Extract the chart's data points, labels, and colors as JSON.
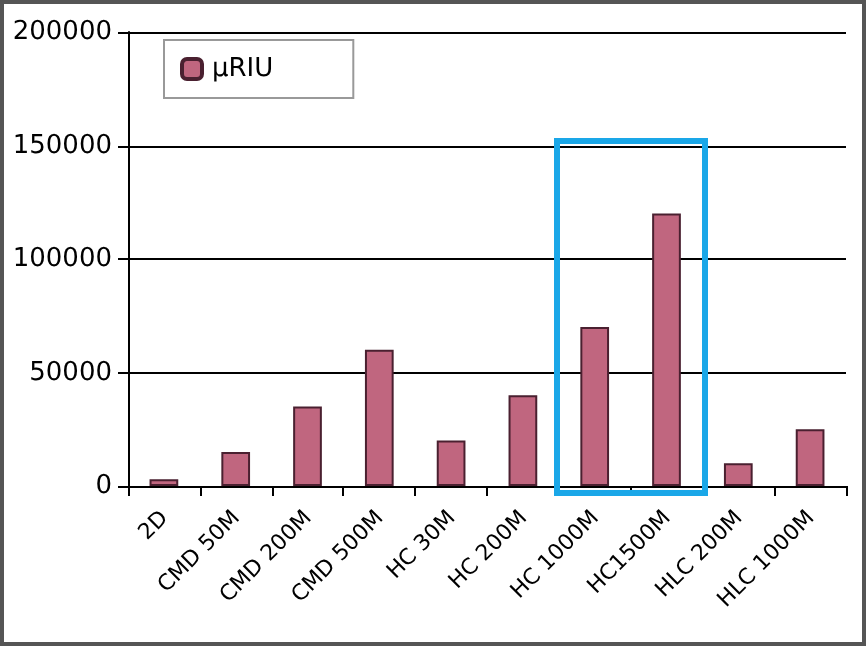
{
  "chart_data": {
    "type": "bar",
    "categories": [
      "2D",
      "CMD 50M",
      "CMD 200M",
      "CMD 500M",
      "HC 30M",
      "HC 200M",
      "HC 1000M",
      "HC1500M",
      "HLC 200M",
      "HLC 1000M"
    ],
    "series": [
      {
        "name": "µRIU",
        "color": "#c0667f",
        "values": [
          3000,
          15000,
          35000,
          60000,
          20000,
          40000,
          70000,
          120000,
          10000,
          25000
        ]
      }
    ],
    "ylim": [
      0,
      200000
    ],
    "yticks": [
      0,
      50000,
      100000,
      150000,
      200000
    ],
    "grid": "y",
    "legend": "top left"
  }
}
